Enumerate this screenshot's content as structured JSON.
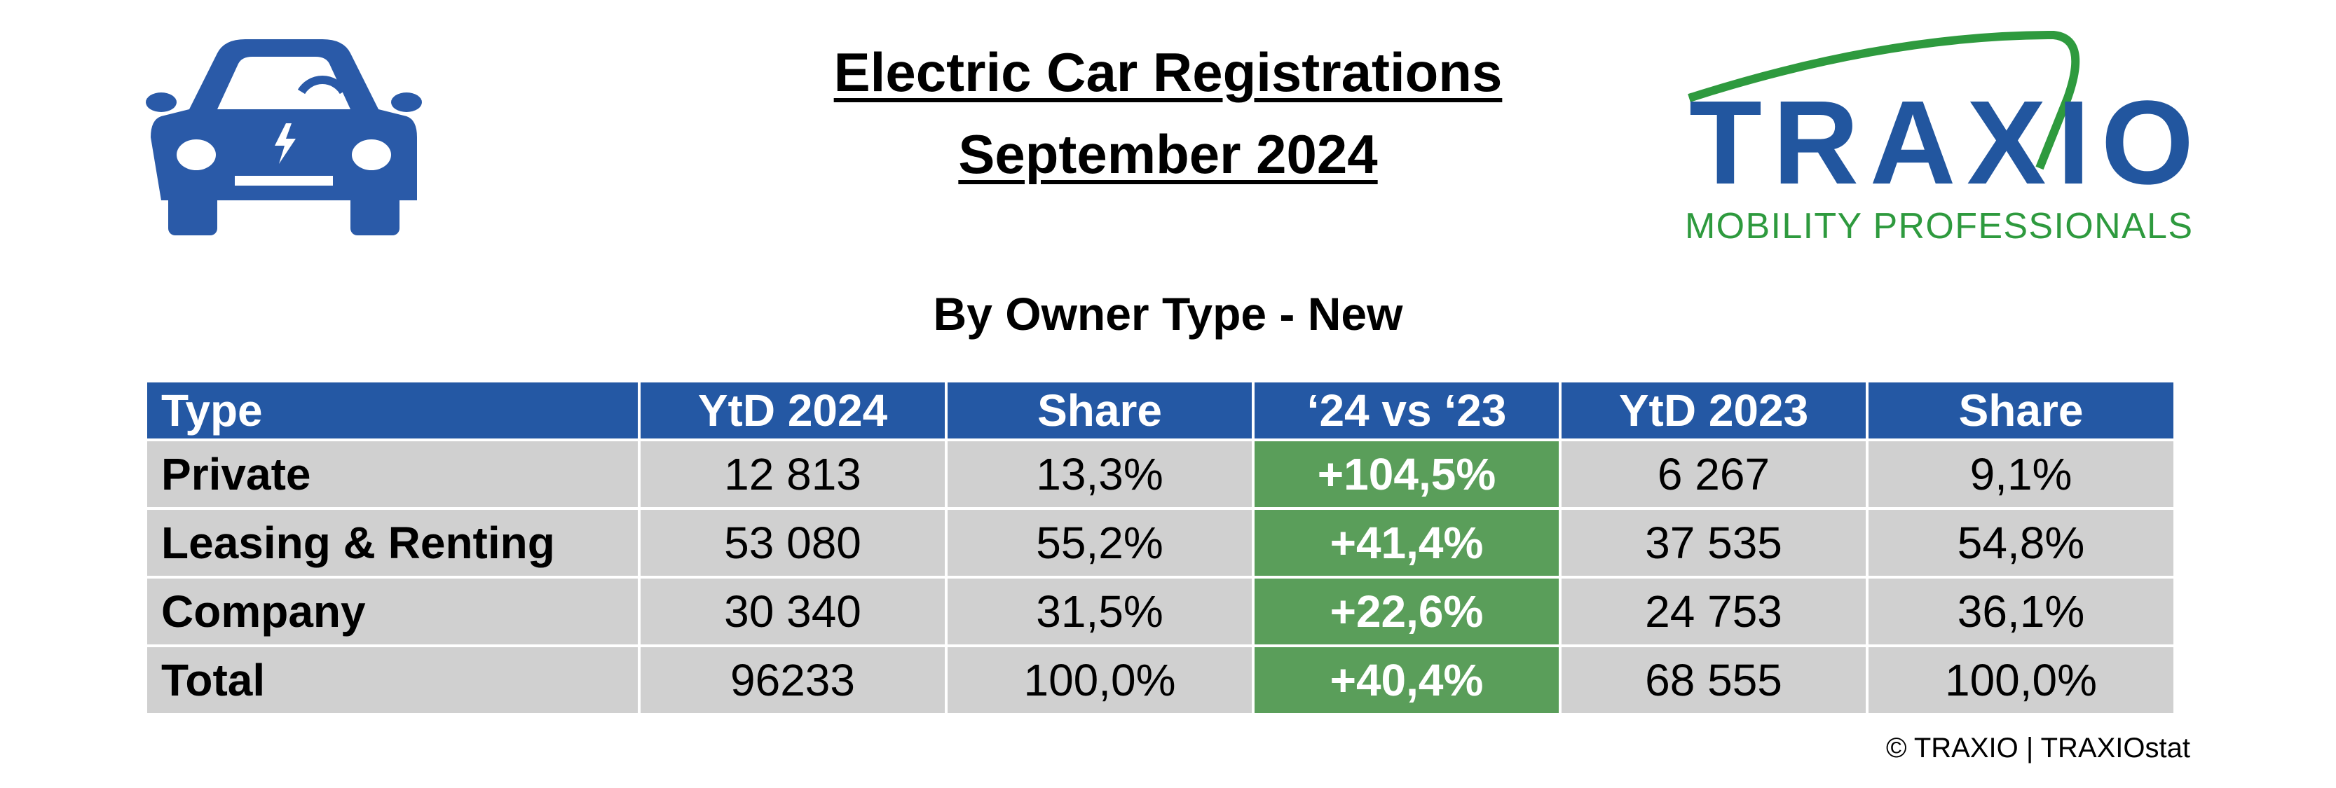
{
  "header": {
    "title_line1": "Electric Car Registrations",
    "title_line2": "September 2024",
    "subtitle": "By Owner Type - New"
  },
  "logo": {
    "name": "TRAXIO",
    "tagline": "MOBILITY PROFESSIONALS"
  },
  "table": {
    "columns": [
      "Type",
      "YtD 2024",
      "Share",
      "‘24 vs ‘23",
      "YtD 2023",
      "Share"
    ],
    "rows": [
      [
        "Private",
        "12 813",
        "13,3%",
        "+104,5%",
        "6 267",
        "9,1%"
      ],
      [
        "Leasing & Renting",
        "53 080",
        "55,2%",
        "+41,4%",
        "37 535",
        "54,8%"
      ],
      [
        "Company",
        "30 340",
        "31,5%",
        "+22,6%",
        "24 753",
        "36,1%"
      ],
      [
        "Total",
        "96233",
        "100,0%",
        "+40,4%",
        "68 555",
        "100,0%"
      ]
    ]
  },
  "footer": "© TRAXIO | TRAXIOstat"
}
